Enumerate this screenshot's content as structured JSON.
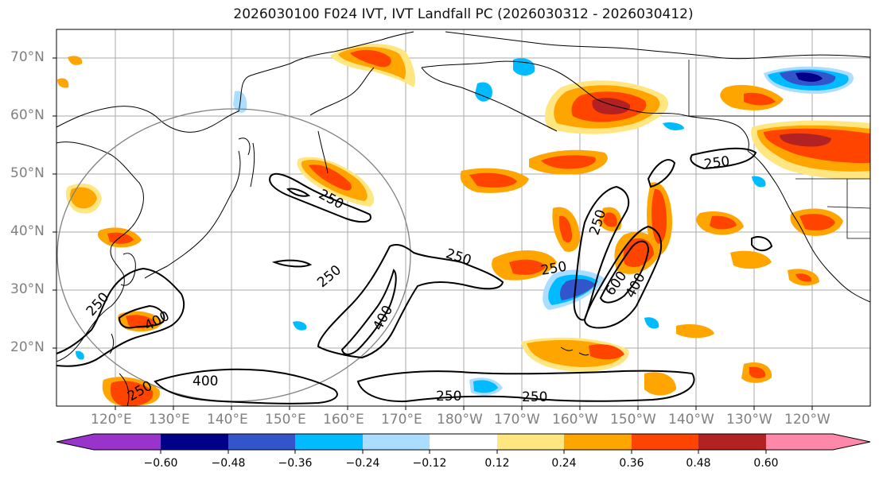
{
  "title": "2026030100 F024 IVT, IVT Landfall PC (2026030312 - 2026030412)",
  "lat_labels": [
    "70°N",
    "60°N",
    "50°N",
    "40°N",
    "30°N",
    "20°N"
  ],
  "lon_labels": [
    "120°E",
    "130°E",
    "140°E",
    "150°E",
    "160°E",
    "170°E",
    "180°W",
    "170°W",
    "160°W",
    "150°W",
    "140°W",
    "130°W",
    "120°W"
  ],
  "contour_labels": [
    "250",
    "250",
    "250",
    "250",
    "250",
    "250",
    "250",
    "250",
    "250",
    "250",
    "400",
    "400",
    "400",
    "400",
    "600"
  ],
  "colorbar": {
    "ticks": [
      "−0.60",
      "−0.48",
      "−0.36",
      "−0.24",
      "−0.12",
      "0.12",
      "0.24",
      "0.36",
      "0.48",
      "0.60"
    ],
    "colors": [
      "#9933cc",
      "#000088",
      "#3355cc",
      "#00bbff",
      "#aaddff",
      "#ffffff",
      "#ffe680",
      "#ffa500",
      "#ff4400",
      "#b22222",
      "#ff88aa"
    ]
  },
  "chart_data": {
    "type": "heatmap",
    "title": "2026030100 F024 IVT, IVT Landfall PC (2026030312 - 2026030412)",
    "variable_shaded": "IVT Landfall PC",
    "variable_contoured": "IVT",
    "contour_levels": [
      250,
      400,
      600
    ],
    "lat_range": [
      10,
      75
    ],
    "lon_range_deg_east": [
      110,
      250
    ],
    "colorbar_levels": [
      -0.6,
      -0.48,
      -0.36,
      -0.24,
      -0.12,
      0.12,
      0.24,
      0.36,
      0.48,
      0.6
    ]
  }
}
